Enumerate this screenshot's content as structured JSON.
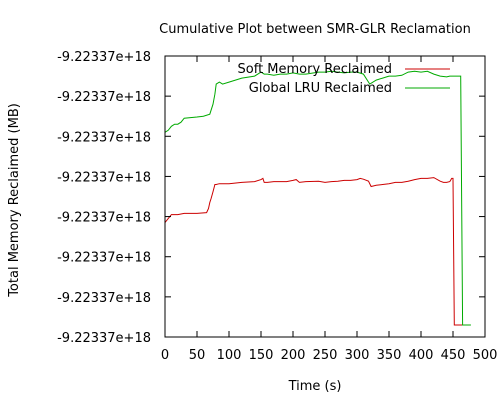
{
  "chart_data": {
    "type": "line",
    "title": "Cumulative Plot between SMR-GLR Reclamation",
    "xlabel": "Time (s)",
    "ylabel": "Total Memory Reclaimed (MB)",
    "xlim": [
      0,
      500
    ],
    "ylim": [
      0,
      7
    ],
    "x_ticks": [
      "0",
      "50",
      "100",
      "150",
      "200",
      "250",
      "300",
      "350",
      "400",
      "450",
      "500"
    ],
    "x_tick_values": [
      0,
      50,
      100,
      150,
      200,
      250,
      300,
      350,
      400,
      450,
      500
    ],
    "y_ticks": [
      "-9.22337e+18",
      "-9.22337e+18",
      "-9.22337e+18",
      "-9.22337e+18",
      "-9.22337e+18",
      "-9.22337e+18",
      "-9.22337e+18",
      "-9.22337e+18"
    ],
    "y_tick_values": [
      0,
      1,
      2,
      3,
      4,
      5,
      6,
      7
    ],
    "grid": false,
    "legend_position": "top-right",
    "series": [
      {
        "name": "Soft Memory Reclaimed",
        "color": "#cc0000",
        "x": [
          0,
          5,
          10,
          20,
          30,
          50,
          65,
          68,
          70,
          72,
          75,
          78,
          80,
          85,
          100,
          120,
          140,
          150,
          153,
          155,
          160,
          170,
          190,
          200,
          205,
          210,
          220,
          240,
          250,
          260,
          270,
          280,
          290,
          300,
          305,
          310,
          318,
          322,
          330,
          340,
          350,
          360,
          370,
          380,
          390,
          400,
          410,
          420,
          430,
          435,
          440,
          445,
          448,
          450,
          452,
          455,
          460,
          468
        ],
        "y": [
          2.85,
          2.95,
          3.05,
          3.05,
          3.08,
          3.08,
          3.1,
          3.2,
          3.35,
          3.45,
          3.62,
          3.8,
          3.8,
          3.82,
          3.82,
          3.85,
          3.87,
          3.92,
          3.95,
          3.85,
          3.85,
          3.87,
          3.87,
          3.9,
          3.92,
          3.85,
          3.87,
          3.88,
          3.85,
          3.87,
          3.88,
          3.9,
          3.9,
          3.92,
          3.95,
          3.93,
          3.88,
          3.75,
          3.78,
          3.8,
          3.82,
          3.85,
          3.85,
          3.88,
          3.92,
          3.95,
          3.95,
          3.97,
          3.88,
          3.85,
          3.85,
          3.87,
          3.95,
          3.95,
          0.3,
          0.3,
          0.3,
          0.3
        ]
      },
      {
        "name": "Global LRU Reclaimed",
        "color": "#00aa00",
        "x": [
          0,
          5,
          10,
          15,
          20,
          25,
          30,
          50,
          60,
          70,
          75,
          78,
          80,
          85,
          90,
          100,
          120,
          140,
          150,
          155,
          160,
          170,
          180,
          190,
          200,
          210,
          220,
          240,
          250,
          260,
          270,
          280,
          290,
          300,
          310,
          318,
          320,
          330,
          340,
          350,
          360,
          370,
          380,
          390,
          400,
          410,
          420,
          430,
          440,
          445,
          450,
          455,
          458,
          460,
          462,
          465,
          470,
          478
        ],
        "y": [
          5.1,
          5.15,
          5.25,
          5.3,
          5.3,
          5.35,
          5.45,
          5.48,
          5.5,
          5.55,
          5.8,
          6.05,
          6.3,
          6.35,
          6.3,
          6.35,
          6.45,
          6.5,
          6.6,
          6.55,
          6.55,
          6.52,
          6.55,
          6.55,
          6.58,
          6.55,
          6.55,
          6.6,
          6.6,
          6.62,
          6.6,
          6.58,
          6.6,
          6.6,
          6.55,
          6.35,
          6.3,
          6.4,
          6.45,
          6.5,
          6.5,
          6.52,
          6.6,
          6.62,
          6.6,
          6.62,
          6.55,
          6.5,
          6.48,
          6.5,
          6.5,
          6.5,
          6.5,
          6.5,
          6.5,
          0.3,
          0.3,
          0.3
        ]
      }
    ]
  }
}
